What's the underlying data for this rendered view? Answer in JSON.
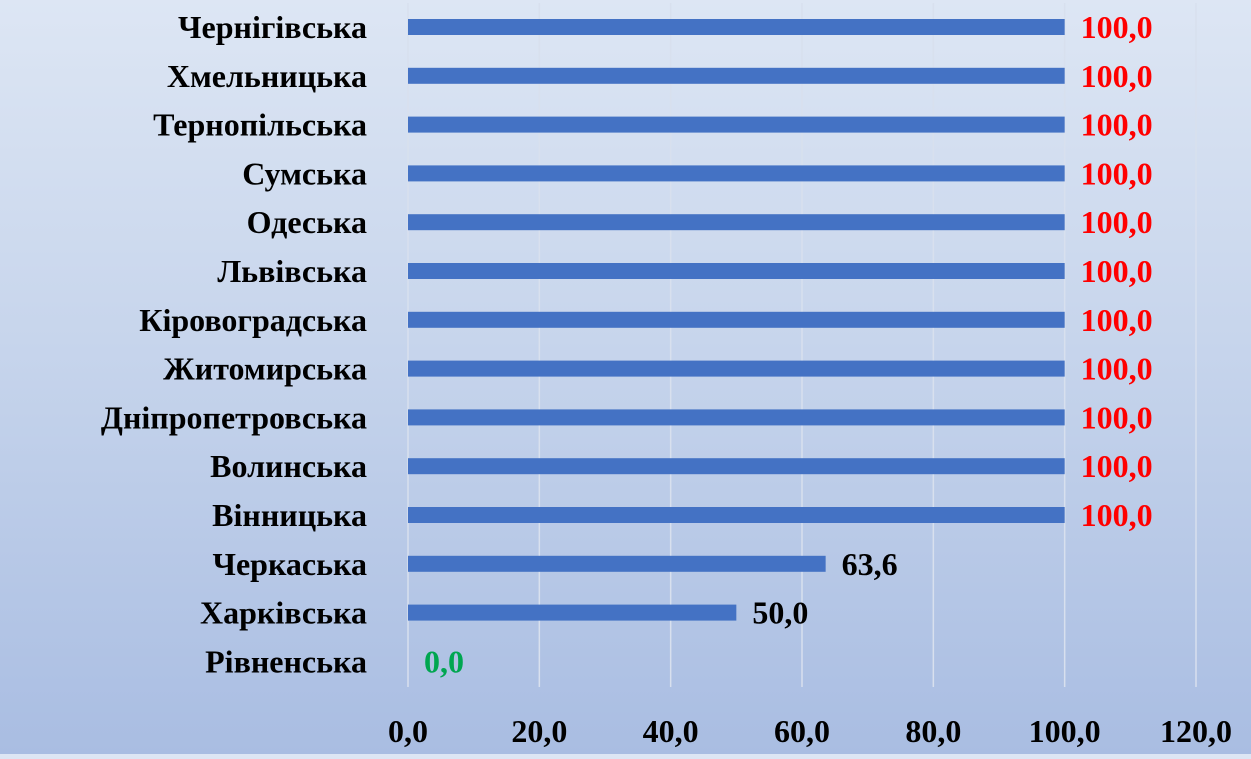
{
  "chart_data": {
    "type": "bar",
    "orientation": "horizontal",
    "categories": [
      "Чернігівська",
      "Хмельницька",
      "Тернопільська",
      "Сумська",
      "Одеська",
      "Львівська",
      "Кіровоградська",
      "Житомирська",
      "Дніпропетровська",
      "Волинська",
      "Вінницька",
      "Черкаська",
      "Харківська",
      "Рівненська"
    ],
    "values": [
      100.0,
      100.0,
      100.0,
      100.0,
      100.0,
      100.0,
      100.0,
      100.0,
      100.0,
      100.0,
      100.0,
      63.6,
      50.0,
      0.0
    ],
    "value_labels": [
      "100,0",
      "100,0",
      "100,0",
      "100,0",
      "100,0",
      "100,0",
      "100,0",
      "100,0",
      "100,0",
      "100,0",
      "100,0",
      "63,6",
      "50,0",
      "0,0"
    ],
    "label_colors": [
      "#ff0000",
      "#ff0000",
      "#ff0000",
      "#ff0000",
      "#ff0000",
      "#ff0000",
      "#ff0000",
      "#ff0000",
      "#ff0000",
      "#ff0000",
      "#ff0000",
      "#000000",
      "#000000",
      "#00a650"
    ],
    "x_ticks": [
      0,
      20,
      40,
      60,
      80,
      100,
      120
    ],
    "x_tick_labels": [
      "0,0",
      "20,0",
      "40,0",
      "60,0",
      "80,0",
      "100,0",
      "120,0"
    ],
    "xlim": [
      0,
      120
    ],
    "title": "",
    "xlabel": "",
    "ylabel": "",
    "grid": "vertical",
    "legend": "none",
    "bar_color": "#4472c4",
    "grid_color": "#d8e0ee"
  }
}
